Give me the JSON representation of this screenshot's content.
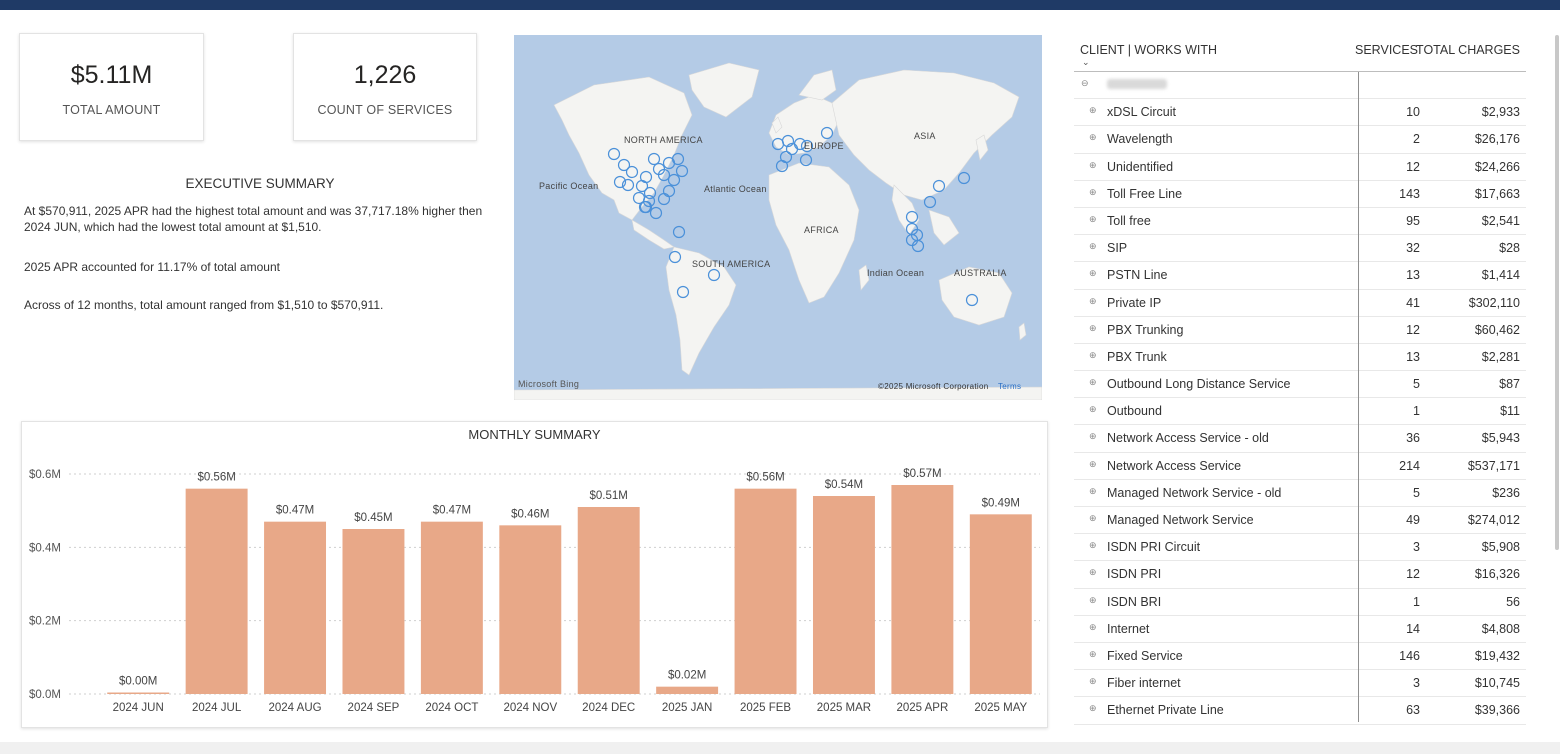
{
  "kpis": [
    {
      "value": "$5.11M",
      "label": "TOTAL AMOUNT"
    },
    {
      "value": "1,226",
      "label": "COUNT OF SERVICES"
    }
  ],
  "executive_summary": {
    "title": "EXECUTIVE SUMMARY",
    "paragraphs": [
      "At $570,911, 2025 APR had the highest total amount and was 37,717.18% higher then 2024 JUN, which had the lowest total amount at $1,510.",
      "2025 APR accounted for 11.17% of total amount",
      "Across of 12 months, total amount ranged from $1,510 to $570,911."
    ]
  },
  "map": {
    "labels": {
      "north_america": "NORTH AMERICA",
      "europe": "EUROPE",
      "asia": "ASIA",
      "pacific": "Pacific Ocean",
      "atlantic": "Atlantic Ocean",
      "africa": "AFRICA",
      "south_america": "SOUTH AMERICA",
      "indian": "Indian Ocean",
      "australia": "AUSTRALIA"
    },
    "attribution_left": "Microsoft Bing",
    "attribution_right": "©2025 Microsoft Corporation",
    "terms": "Terms",
    "marker_color": "#4a90d9"
  },
  "chart_data": {
    "type": "bar",
    "title": "MONTHLY SUMMARY",
    "categories": [
      "2024 JUN",
      "2024 JUL",
      "2024 AUG",
      "2024 SEP",
      "2024 OCT",
      "2024 NOV",
      "2024 DEC",
      "2025 JAN",
      "2025 FEB",
      "2025 MAR",
      "2025 APR",
      "2025 MAY"
    ],
    "values": [
      0.0015,
      0.56,
      0.47,
      0.45,
      0.47,
      0.46,
      0.51,
      0.02,
      0.56,
      0.54,
      0.57,
      0.49
    ],
    "data_labels": [
      "$0.00M",
      "$0.56M",
      "$0.47M",
      "$0.45M",
      "$0.47M",
      "$0.46M",
      "$0.51M",
      "$0.02M",
      "$0.56M",
      "$0.54M",
      "$0.57M",
      "$0.49M"
    ],
    "yticks": [
      0,
      0.2,
      0.4,
      0.6
    ],
    "ytick_labels": [
      "$0.0M",
      "$0.2M",
      "$0.4M",
      "$0.6M"
    ],
    "ylim": [
      0,
      0.6
    ],
    "grid": true,
    "bar_color": "#e8a888"
  },
  "table": {
    "header": {
      "name": "CLIENT | WORKS WITH",
      "services": "SERVICES",
      "charges": "TOTAL CHARGES"
    },
    "rows": [
      {
        "name": "xDSL Circuit",
        "services": "10",
        "charges": "$2,933"
      },
      {
        "name": "Wavelength",
        "services": "2",
        "charges": "$26,176"
      },
      {
        "name": "Unidentified",
        "services": "12",
        "charges": "$24,266"
      },
      {
        "name": "Toll Free Line",
        "services": "143",
        "charges": "$17,663"
      },
      {
        "name": "Toll free",
        "services": "95",
        "charges": "$2,541"
      },
      {
        "name": "SIP",
        "services": "32",
        "charges": "$28"
      },
      {
        "name": "PSTN Line",
        "services": "13",
        "charges": "$1,414"
      },
      {
        "name": "Private IP",
        "services": "41",
        "charges": "$302,110"
      },
      {
        "name": "PBX Trunking",
        "services": "12",
        "charges": "$60,462"
      },
      {
        "name": "PBX Trunk",
        "services": "13",
        "charges": "$2,281"
      },
      {
        "name": "Outbound Long Distance Service",
        "services": "5",
        "charges": "$87"
      },
      {
        "name": "Outbound",
        "services": "1",
        "charges": "$11"
      },
      {
        "name": "Network Access Service - old",
        "services": "36",
        "charges": "$5,943"
      },
      {
        "name": "Network Access Service",
        "services": "214",
        "charges": "$537,171"
      },
      {
        "name": "Managed Network Service - old",
        "services": "5",
        "charges": "$236"
      },
      {
        "name": "Managed Network Service",
        "services": "49",
        "charges": "$274,012"
      },
      {
        "name": "ISDN PRI Circuit",
        "services": "3",
        "charges": "$5,908"
      },
      {
        "name": "ISDN PRI",
        "services": "12",
        "charges": "$16,326"
      },
      {
        "name": "ISDN BRI",
        "services": "1",
        "charges": "56"
      },
      {
        "name": "Internet",
        "services": "14",
        "charges": "$4,808"
      },
      {
        "name": "Fixed Service",
        "services": "146",
        "charges": "$19,432"
      },
      {
        "name": "Fiber internet",
        "services": "3",
        "charges": "$10,745"
      },
      {
        "name": "Ethernet Private Line",
        "services": "63",
        "charges": "$39,366"
      }
    ]
  }
}
